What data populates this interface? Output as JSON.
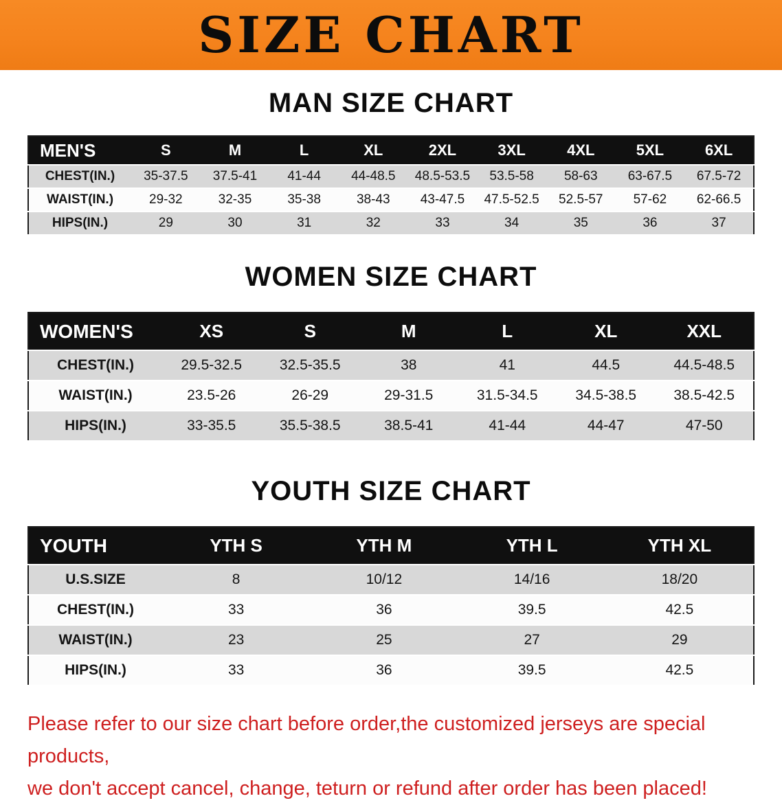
{
  "banner": {
    "title": "SIZE CHART"
  },
  "colors": {
    "banner_bg": "#F5831D",
    "table_header_bg": "#101010",
    "row_stripe": "#D8D8D8",
    "disclaimer_text": "#CE1F1F"
  },
  "men": {
    "heading": "MAN SIZE CHART",
    "table": {
      "header": [
        "MEN'S",
        "S",
        "M",
        "L",
        "XL",
        "2XL",
        "3XL",
        "4XL",
        "5XL",
        "6XL"
      ],
      "rows": [
        [
          "CHEST(IN.)",
          "35-37.5",
          "37.5-41",
          "41-44",
          "44-48.5",
          "48.5-53.5",
          "53.5-58",
          "58-63",
          "63-67.5",
          "67.5-72"
        ],
        [
          "WAIST(IN.)",
          "29-32",
          "32-35",
          "35-38",
          "38-43",
          "43-47.5",
          "47.5-52.5",
          "52.5-57",
          "57-62",
          "62-66.5"
        ],
        [
          "HIPS(IN.)",
          "29",
          "30",
          "31",
          "32",
          "33",
          "34",
          "35",
          "36",
          "37"
        ]
      ]
    }
  },
  "women": {
    "heading": "WOMEN SIZE CHART",
    "table": {
      "header": [
        "WOMEN'S",
        "XS",
        "S",
        "M",
        "L",
        "XL",
        "XXL"
      ],
      "rows": [
        [
          "CHEST(IN.)",
          "29.5-32.5",
          "32.5-35.5",
          "38",
          "41",
          "44.5",
          "44.5-48.5"
        ],
        [
          "WAIST(IN.)",
          "23.5-26",
          "26-29",
          "29-31.5",
          "31.5-34.5",
          "34.5-38.5",
          "38.5-42.5"
        ],
        [
          "HIPS(IN.)",
          "33-35.5",
          "35.5-38.5",
          "38.5-41",
          "41-44",
          "44-47",
          "47-50"
        ]
      ]
    }
  },
  "youth": {
    "heading": "YOUTH SIZE CHART",
    "table": {
      "header": [
        "YOUTH",
        "YTH S",
        "YTH M",
        "YTH L",
        "YTH XL"
      ],
      "rows": [
        [
          "U.S.SIZE",
          "8",
          "10/12",
          "14/16",
          "18/20"
        ],
        [
          "CHEST(IN.)",
          "33",
          "36",
          "39.5",
          "42.5"
        ],
        [
          "WAIST(IN.)",
          "23",
          "25",
          "27",
          "29"
        ],
        [
          "HIPS(IN.)",
          "33",
          "36",
          "39.5",
          "42.5"
        ]
      ]
    }
  },
  "disclaimer": {
    "line1": "Please refer to our size chart before order,the customized jerseys are special products,",
    "line2": "we don't accept cancel, change, teturn or refund after order has been placed!"
  }
}
